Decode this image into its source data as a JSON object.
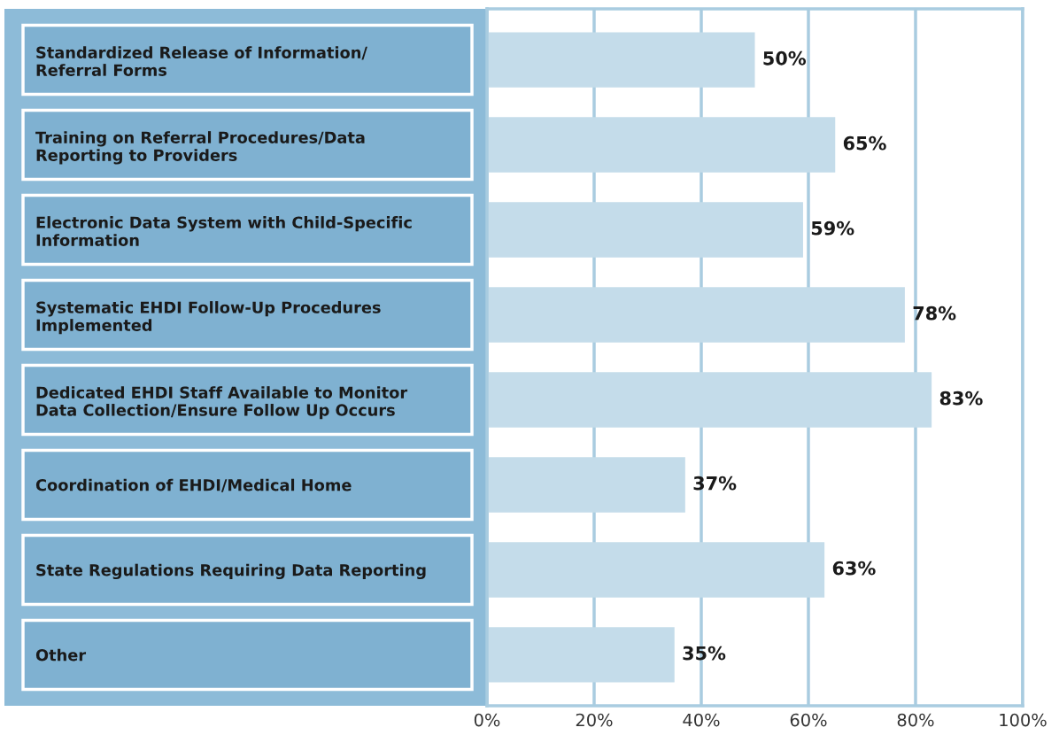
{
  "chart_data": {
    "type": "bar",
    "orientation": "horizontal",
    "categories": [
      "Standardized Release of Information/\nReferral Forms",
      "Training on Referral Procedures/Data\nReporting to Providers",
      "Electronic Data System with Child-Specific\nInformation",
      "Systematic EHDI Follow-Up Procedures\nImplemented",
      "Dedicated EHDI Staff Available to Monitor\nData Collection/Ensure Follow Up Occurs",
      "Coordination of EHDI/Medical Home",
      "State Regulations Requiring Data Reporting",
      "Other"
    ],
    "values": [
      50,
      65,
      59,
      78,
      83,
      37,
      63,
      35
    ],
    "value_labels": [
      "50%",
      "65%",
      "59%",
      "78%",
      "83%",
      "37%",
      "63%",
      "35%"
    ],
    "color": "#c4dcea",
    "xlim": [
      0,
      100
    ],
    "xticks": [
      {
        "value": 0,
        "label": "0%"
      },
      {
        "value": 20,
        "label": "20%"
      },
      {
        "value": 40,
        "label": "40%"
      },
      {
        "value": 60,
        "label": "60%"
      },
      {
        "value": 80,
        "label": "80%"
      },
      {
        "value": 100,
        "label": "100%"
      }
    ],
    "grid": "x",
    "legend": false
  }
}
